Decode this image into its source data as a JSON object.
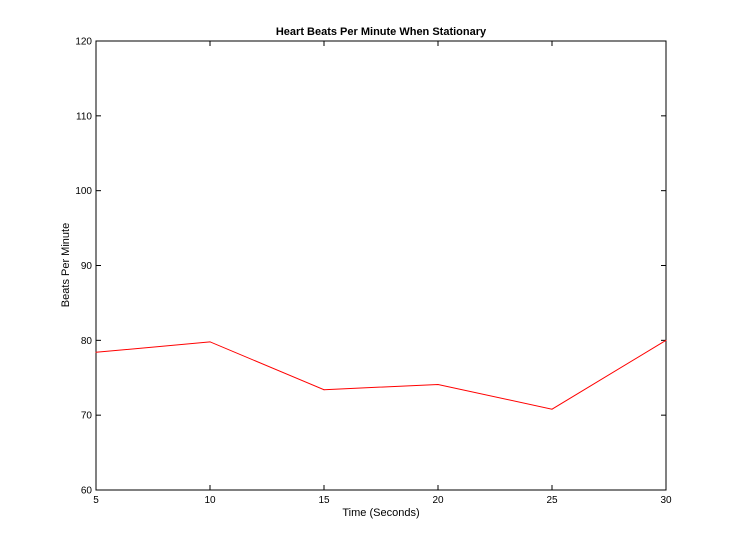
{
  "chart_data": {
    "type": "line",
    "title": "Heart Beats Per Minute When Stationary",
    "xlabel": "Time (Seconds)",
    "ylabel": "Beats Per Minute",
    "xlim": [
      5,
      30
    ],
    "ylim": [
      60,
      120
    ],
    "xticks": [
      5,
      10,
      15,
      20,
      25,
      30
    ],
    "yticks": [
      60,
      70,
      80,
      90,
      100,
      110,
      120
    ],
    "xtick_labels": [
      "5",
      "10",
      "15",
      "20",
      "25",
      "30"
    ],
    "ytick_labels": [
      "60",
      "70",
      "80",
      "90",
      "100",
      "110",
      "120"
    ],
    "grid": false,
    "series": [
      {
        "color": "#ff0000",
        "x": [
          5,
          10,
          15,
          20,
          25,
          30
        ],
        "y": [
          78.4,
          79.8,
          73.4,
          74.1,
          70.8,
          80.0
        ]
      }
    ]
  }
}
